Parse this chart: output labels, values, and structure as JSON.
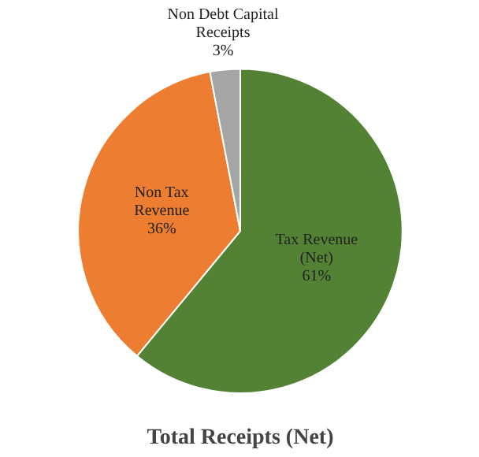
{
  "chart_data": {
    "type": "pie",
    "title": "Total Receipts (Net)",
    "categories": [
      "Tax Revenue (Net)",
      "Non Tax Revenue",
      "Non Debt Capital Receipts"
    ],
    "values": [
      61,
      36,
      3
    ],
    "value_labels": [
      "61%",
      "36%",
      "3%"
    ],
    "colors": [
      "#548235",
      "#ed7d31",
      "#a5a5a5"
    ]
  }
}
